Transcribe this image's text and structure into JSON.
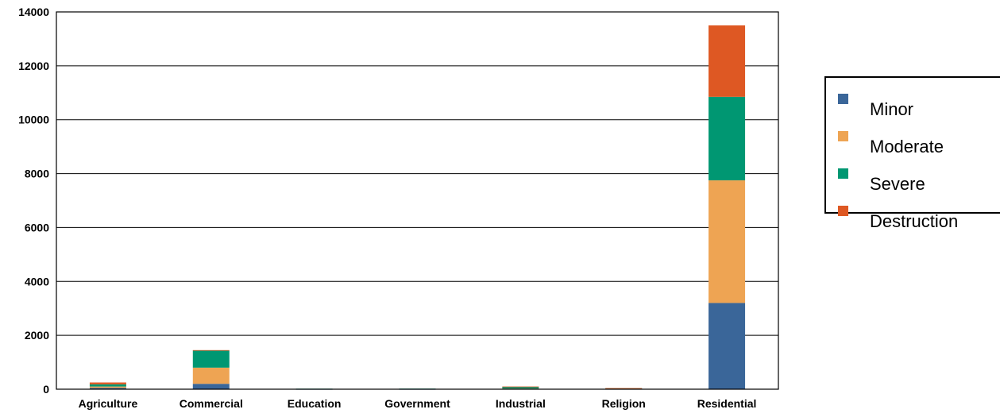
{
  "chart_data": {
    "type": "bar",
    "stacked": true,
    "categories": [
      "Agriculture",
      "Commercial",
      "Education",
      "Government",
      "Industrial",
      "Religion",
      "Residential"
    ],
    "series": [
      {
        "name": "Minor",
        "color": "#3a6699",
        "values": [
          50,
          200,
          5,
          5,
          10,
          8,
          3200
        ]
      },
      {
        "name": "Moderate",
        "color": "#eea453",
        "values": [
          50,
          600,
          5,
          5,
          15,
          12,
          4550
        ]
      },
      {
        "name": "Severe",
        "color": "#009772",
        "values": [
          80,
          630,
          10,
          12,
          65,
          15,
          3100
        ]
      },
      {
        "name": "Destruction",
        "color": "#de5823",
        "values": [
          70,
          20,
          0,
          0,
          10,
          5,
          2650
        ]
      }
    ],
    "ylim": [
      0,
      14000
    ],
    "yticks": [
      0,
      2000,
      4000,
      6000,
      8000,
      10000,
      12000,
      14000
    ],
    "grid": true,
    "legend_position": "right",
    "title": "",
    "xlabel": "",
    "ylabel": ""
  }
}
